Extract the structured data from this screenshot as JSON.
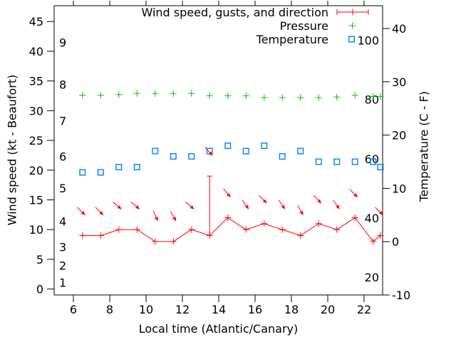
{
  "chart_data": {
    "type": "line",
    "xlabel": "Local time (Atlantic/Canary)",
    "ylabel_left": "Wind speed (kt - Beaufort)",
    "ylabel_right": "Temperature (C - F)",
    "legend": {
      "position": "top-right-inside",
      "wind": "Wind speed, gusts, and direction",
      "pressure": "Pressure",
      "temperature": "Temperature"
    },
    "colors": {
      "wind": "#ff0000",
      "pressure": "#00c000",
      "temperature": "#0080ff",
      "axis": "#000000",
      "background": "#ffffff"
    },
    "grid": false,
    "xlim": [
      4.94,
      23.02
    ],
    "x_ticks": [
      6,
      8,
      10,
      12,
      14,
      16,
      18,
      20,
      22
    ],
    "left_axis": {
      "unit": "kt",
      "ticks": [
        0,
        5,
        10,
        15,
        20,
        25,
        30,
        35,
        40,
        45
      ],
      "lim": [
        -1.0,
        47.66
      ]
    },
    "beaufort_scale": [
      {
        "label": "1",
        "kt": 1.1
      },
      {
        "label": "2",
        "kt": 4.0
      },
      {
        "label": "3",
        "kt": 7.1
      },
      {
        "label": "4",
        "kt": 11.4
      },
      {
        "label": "5",
        "kt": 17.0
      },
      {
        "label": "6",
        "kt": 22.3
      },
      {
        "label": "7",
        "kt": 28.3
      },
      {
        "label": "8",
        "kt": 34.4
      },
      {
        "label": "9",
        "kt": 41.5
      }
    ],
    "right_axis": {
      "unit": "C",
      "ticks": [
        -10,
        0,
        10,
        20,
        30,
        40
      ],
      "lim": [
        -10,
        44.28
      ]
    },
    "fahrenheit_scale": [
      {
        "label": "20",
        "c": -6.67
      },
      {
        "label": "40",
        "c": 4.44
      },
      {
        "label": "60",
        "c": 15.56
      },
      {
        "label": "80",
        "c": 26.67
      },
      {
        "label": "100",
        "c": 37.78
      }
    ],
    "x": [
      6.5,
      7.5,
      8.5,
      9.5,
      10.5,
      11.5,
      12.5,
      13.5,
      14.5,
      15.5,
      16.5,
      17.5,
      18.5,
      19.5,
      20.5,
      21.5,
      22.5,
      22.9
    ],
    "series": [
      {
        "name": "Wind speed, gusts, and direction",
        "axis": "left",
        "marker": "plus",
        "line": true,
        "wind_kt": [
          9,
          9,
          10,
          10,
          8,
          8,
          10,
          9,
          12,
          10,
          11,
          10,
          9,
          11,
          10,
          12,
          8,
          9
        ],
        "gust_kt": [
          9,
          9,
          10,
          10,
          8,
          8,
          10,
          19,
          12,
          10,
          11,
          10,
          9,
          11,
          10,
          12,
          8,
          9
        ],
        "direction_arrow_screen_deg": [
          45,
          45,
          40,
          40,
          65,
          60,
          40,
          50,
          50,
          55,
          45,
          55,
          60,
          45,
          55,
          45,
          null,
          45
        ]
      },
      {
        "name": "Pressure",
        "axis": "left-equivalent",
        "marker": "plus",
        "line": false,
        "values_plot_units_kt": [
          32.6,
          32.6,
          32.7,
          32.9,
          32.9,
          32.9,
          32.9,
          32.5,
          32.5,
          32.5,
          32.2,
          32.2,
          32.2,
          32.2,
          32.3,
          32.6,
          32.4,
          32.4
        ]
      },
      {
        "name": "Temperature",
        "axis": "right",
        "marker": "open-square",
        "line": false,
        "values_c": [
          13,
          13,
          14,
          14,
          17,
          16,
          16,
          17,
          18,
          17,
          18,
          16,
          17,
          15,
          15,
          15,
          15,
          14
        ]
      }
    ]
  }
}
